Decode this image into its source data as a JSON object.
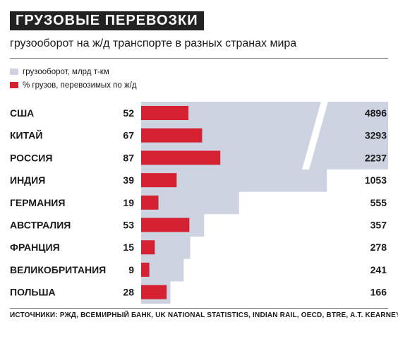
{
  "header": {
    "title": "ГРУЗОВЫЕ ПЕРЕВОЗКИ",
    "subtitle": "грузооборот на ж/д транспорте в разных странах мира"
  },
  "colors": {
    "turnover": "#cdd3e1",
    "share": "#d42232",
    "title_bg": "#222222"
  },
  "chart_data": {
    "type": "bar",
    "categories": [
      "США",
      "КИТАЙ",
      "РОССИЯ",
      "ИНДИЯ",
      "ГЕРМАНИЯ",
      "АВСТРАЛИЯ",
      "ФРАНЦИЯ",
      "ВЕЛИКОБРИТАНИЯ",
      "ПОЛЬША"
    ],
    "series": [
      {
        "name": "грузооборот, млрд т-км",
        "values": [
          4896,
          3293,
          2237,
          1053,
          555,
          357,
          278,
          241,
          166
        ]
      },
      {
        "name": "% грузов, перевозимых по ж/д",
        "values": [
          52,
          67,
          87,
          39,
          19,
          53,
          15,
          9,
          28
        ]
      }
    ],
    "legend": "top-left",
    "axis_break": true
  },
  "footer": {
    "source": "ИСТОЧНИКИ: РЖД, ВСЕМИРНЫЙ БАНК, UK NATIONAL STATISTICS, INDIAN RAIL, OECD, BTRE, A.T. KEARNEY"
  }
}
